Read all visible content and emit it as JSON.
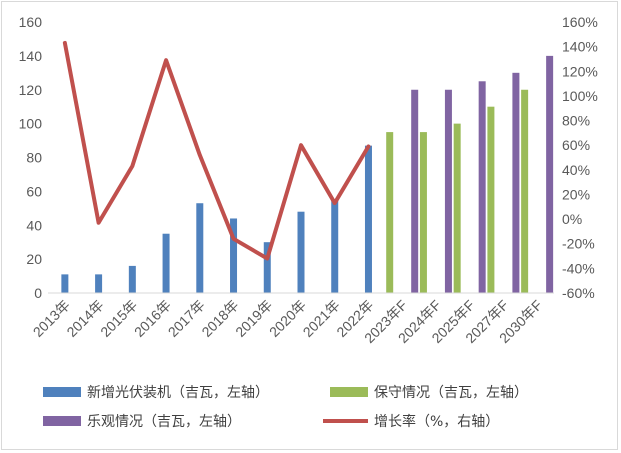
{
  "chart_data": {
    "type": "bar+line",
    "categories": [
      "2013年",
      "2014年",
      "2015年",
      "2016年",
      "2017年",
      "2018年",
      "2019年",
      "2020年",
      "2021年",
      "2022年",
      "2023年F",
      "2024年F",
      "2025年F",
      "2027年F",
      "2030年F"
    ],
    "series": [
      {
        "name": "新增光伏装机（吉瓦，左轴）",
        "type": "bar",
        "axis": "left",
        "color": "#4f81bd",
        "values": [
          11,
          11,
          16,
          35,
          53,
          44,
          30,
          48,
          55,
          87,
          null,
          null,
          null,
          null,
          null
        ]
      },
      {
        "name": "保守情况（吉瓦，左轴）",
        "type": "bar",
        "axis": "left",
        "color": "#9bbb59",
        "values": [
          null,
          null,
          null,
          null,
          null,
          null,
          null,
          null,
          null,
          null,
          95,
          95,
          100,
          110,
          120
        ]
      },
      {
        "name": "乐观情况（吉瓦，左轴）",
        "type": "bar",
        "axis": "left",
        "color": "#8064a2",
        "values": [
          null,
          null,
          null,
          null,
          null,
          null,
          null,
          null,
          null,
          null,
          120,
          120,
          125,
          130,
          140
        ]
      },
      {
        "name": "增长率（%，右轴）",
        "type": "line",
        "axis": "right",
        "color": "#c0504d",
        "values": [
          143,
          -3,
          43,
          129,
          52,
          -16,
          -32,
          60,
          13,
          59,
          null,
          null,
          null,
          null,
          null
        ]
      }
    ],
    "y_left": {
      "min": 0,
      "max": 160,
      "step": 20,
      "ticks": [
        "0",
        "20",
        "40",
        "60",
        "80",
        "100",
        "120",
        "140",
        "160"
      ]
    },
    "y_right": {
      "min": -60,
      "max": 160,
      "step": 20,
      "ticks": [
        "-60%",
        "-40%",
        "-20%",
        "0%",
        "20%",
        "40%",
        "60%",
        "80%",
        "100%",
        "120%",
        "140%",
        "160%"
      ]
    },
    "grid": false,
    "legend_position": "bottom"
  }
}
